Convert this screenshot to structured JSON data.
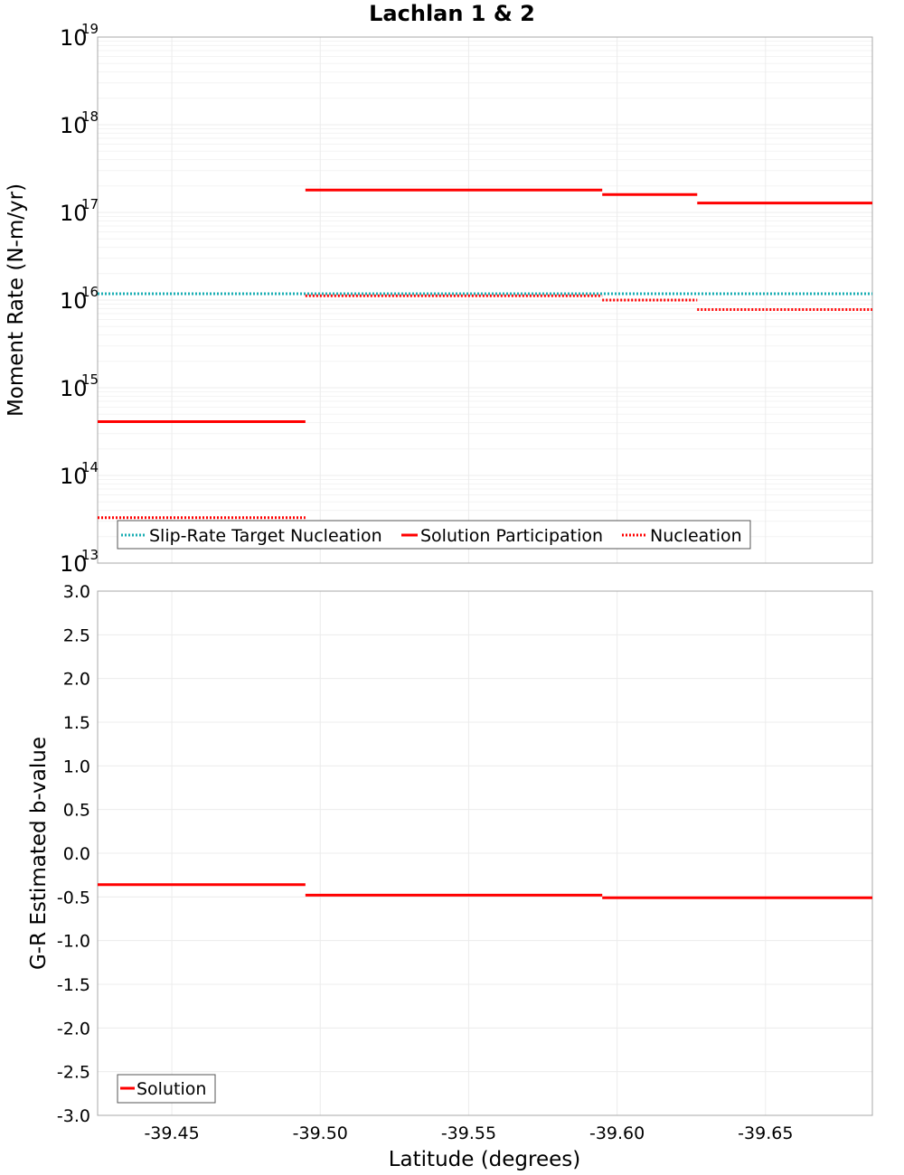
{
  "chart_data": [
    {
      "type": "line",
      "title": "Lachlan 1 & 2",
      "xlabel": "",
      "ylabel": "Moment Rate (N-m/yr)",
      "yscale": "log",
      "xlim": [
        -39.425,
        -39.686
      ],
      "ylim": [
        10000000000000.0,
        1e+19
      ],
      "y_tick_labels": [
        {
          "base": "10",
          "exp": "13"
        },
        {
          "base": "10",
          "exp": "14"
        },
        {
          "base": "10",
          "exp": "15"
        },
        {
          "base": "10",
          "exp": "16"
        },
        {
          "base": "10",
          "exp": "17"
        },
        {
          "base": "10",
          "exp": "18"
        },
        {
          "base": "10",
          "exp": "19"
        }
      ],
      "grid": true,
      "legend_position": "bottom-left",
      "series": [
        {
          "name": "Slip-Rate Target Nucleation",
          "color": "#1aaeb3",
          "style": "dotted",
          "segments": [
            {
              "x": [
                -39.425,
                -39.686
              ],
              "y": 1.18e+16
            }
          ]
        },
        {
          "name": "Solution Participation",
          "color": "#ff0000",
          "style": "solid",
          "segments": [
            {
              "x": [
                -39.425,
                -39.495
              ],
              "y": 410000000000000.0
            },
            {
              "x": [
                -39.495,
                -39.595
              ],
              "y": 1.8e+17
            },
            {
              "x": [
                -39.595,
                -39.627
              ],
              "y": 1.6e+17
            },
            {
              "x": [
                -39.627,
                -39.686
              ],
              "y": 1.28e+17
            }
          ]
        },
        {
          "name": "Nucleation",
          "color": "#ff0000",
          "style": "dotted",
          "segments": [
            {
              "x": [
                -39.425,
                -39.495
              ],
              "y": 33000000000000.0
            },
            {
              "x": [
                -39.495,
                -39.595
              ],
              "y": 1.12e+16
            },
            {
              "x": [
                -39.595,
                -39.627
              ],
              "y": 1e+16
            },
            {
              "x": [
                -39.627,
                -39.686
              ],
              "y": 7800000000000000.0
            }
          ]
        }
      ]
    },
    {
      "type": "line",
      "title": "",
      "xlabel": "Latitude (degrees)",
      "ylabel": "G-R Estimated b-value",
      "xlim": [
        -39.425,
        -39.686
      ],
      "ylim": [
        -3.0,
        3.0
      ],
      "x_ticks": [
        -39.45,
        -39.5,
        -39.55,
        -39.6,
        -39.65
      ],
      "x_tick_labels": [
        "-39.45",
        "-39.50",
        "-39.55",
        "-39.60",
        "-39.65"
      ],
      "y_ticks": [
        3.0,
        2.5,
        2.0,
        1.5,
        1.0,
        0.5,
        0.0,
        -0.5,
        -1.0,
        -1.5,
        -2.0,
        -2.5,
        -3.0
      ],
      "y_tick_labels": [
        "3.0",
        "2.5",
        "2.0",
        "1.5",
        "1.0",
        "0.5",
        "0.0",
        "-0.5",
        "-1.0",
        "-1.5",
        "-2.0",
        "-2.5",
        "-3.0"
      ],
      "grid": true,
      "legend_position": "bottom-left",
      "series": [
        {
          "name": "Solution",
          "color": "#ff0000",
          "style": "solid",
          "segments": [
            {
              "x": [
                -39.425,
                -39.495
              ],
              "y": -0.36
            },
            {
              "x": [
                -39.495,
                -39.595
              ],
              "y": -0.48
            },
            {
              "x": [
                -39.595,
                -39.686
              ],
              "y": -0.51
            }
          ]
        }
      ]
    }
  ]
}
